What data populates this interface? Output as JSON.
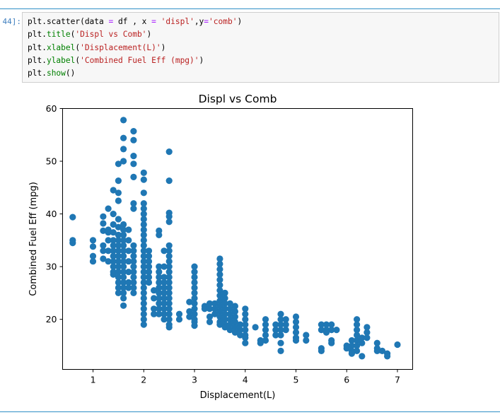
{
  "cell": {
    "prompt": "44]:",
    "code_lines": [
      [
        {
          "t": "plt.scatter(data ",
          "c": "fn"
        },
        {
          "t": "=",
          "c": "op"
        },
        {
          "t": " df , x ",
          "c": "fn"
        },
        {
          "t": "=",
          "c": "op"
        },
        {
          "t": " ",
          "c": "fn"
        },
        {
          "t": "'displ'",
          "c": "str"
        },
        {
          "t": ",y",
          "c": "fn"
        },
        {
          "t": "=",
          "c": "op"
        },
        {
          "t": "'comb'",
          "c": "str"
        },
        {
          "t": ")",
          "c": "fn"
        }
      ],
      [
        {
          "t": "plt.",
          "c": "fn"
        },
        {
          "t": "title",
          "c": "kw"
        },
        {
          "t": "(",
          "c": "fn"
        },
        {
          "t": "'Displ vs Comb'",
          "c": "str"
        },
        {
          "t": ")",
          "c": "fn"
        }
      ],
      [
        {
          "t": "plt.",
          "c": "fn"
        },
        {
          "t": "xlabel",
          "c": "kw"
        },
        {
          "t": "(",
          "c": "fn"
        },
        {
          "t": "'Displacement(L)'",
          "c": "str"
        },
        {
          "t": ")",
          "c": "fn"
        }
      ],
      [
        {
          "t": "plt.",
          "c": "fn"
        },
        {
          "t": "ylabel",
          "c": "kw"
        },
        {
          "t": "(",
          "c": "fn"
        },
        {
          "t": "'Combined Fuel Eff (mpg)'",
          "c": "str"
        },
        {
          "t": ")",
          "c": "fn"
        }
      ],
      [
        {
          "t": "plt.",
          "c": "fn"
        },
        {
          "t": "show",
          "c": "kw"
        },
        {
          "t": "()",
          "c": "fn"
        }
      ]
    ]
  },
  "chart_data": {
    "type": "scatter",
    "title": "Displ vs Comb",
    "xlabel": "Displacement(L)",
    "ylabel": "Combined Fuel Eff (mpg)",
    "xlim": [
      0.4,
      7.3
    ],
    "ylim": [
      10.5,
      60
    ],
    "xticks": [
      1,
      2,
      3,
      4,
      5,
      6,
      7
    ],
    "yticks": [
      20,
      30,
      40,
      50,
      60
    ],
    "grid": false,
    "legend": "none",
    "color": "#1f77b4",
    "points": [
      [
        0.6,
        39.4
      ],
      [
        0.6,
        35.0
      ],
      [
        0.6,
        34.5
      ],
      [
        1.0,
        35.0
      ],
      [
        1.0,
        33.8
      ],
      [
        1.0,
        32.0
      ],
      [
        1.0,
        31.0
      ],
      [
        1.2,
        39.5
      ],
      [
        1.2,
        38.2
      ],
      [
        1.2,
        36.8
      ],
      [
        1.2,
        34.0
      ],
      [
        1.2,
        33.0
      ],
      [
        1.2,
        31.5
      ],
      [
        1.3,
        41.0
      ],
      [
        1.3,
        37.0
      ],
      [
        1.3,
        36.5
      ],
      [
        1.3,
        35.0
      ],
      [
        1.3,
        33.0
      ],
      [
        1.3,
        31.0
      ],
      [
        1.4,
        44.5
      ],
      [
        1.4,
        40.0
      ],
      [
        1.4,
        38.0
      ],
      [
        1.4,
        36.5
      ],
      [
        1.4,
        35.0
      ],
      [
        1.4,
        34.0
      ],
      [
        1.4,
        33.0
      ],
      [
        1.4,
        32.0
      ],
      [
        1.4,
        31.0
      ],
      [
        1.4,
        30.0
      ],
      [
        1.4,
        29.0
      ],
      [
        1.4,
        28.5
      ],
      [
        1.5,
        49.5
      ],
      [
        1.5,
        46.3
      ],
      [
        1.5,
        44.0
      ],
      [
        1.5,
        42.5
      ],
      [
        1.5,
        39.0
      ],
      [
        1.5,
        37.5
      ],
      [
        1.5,
        36.0
      ],
      [
        1.5,
        35.0
      ],
      [
        1.5,
        34.0
      ],
      [
        1.5,
        33.0
      ],
      [
        1.5,
        32.0
      ],
      [
        1.5,
        31.0
      ],
      [
        1.5,
        30.0
      ],
      [
        1.5,
        29.0
      ],
      [
        1.5,
        28.0
      ],
      [
        1.5,
        27.0
      ],
      [
        1.5,
        26.0
      ],
      [
        1.5,
        25.0
      ],
      [
        1.6,
        57.8
      ],
      [
        1.6,
        54.4
      ],
      [
        1.6,
        52.3
      ],
      [
        1.6,
        50.0
      ],
      [
        1.6,
        38.0
      ],
      [
        1.6,
        37.0
      ],
      [
        1.6,
        36.0
      ],
      [
        1.6,
        35.0
      ],
      [
        1.6,
        34.0
      ],
      [
        1.6,
        33.0
      ],
      [
        1.6,
        32.0
      ],
      [
        1.6,
        31.0
      ],
      [
        1.6,
        30.0
      ],
      [
        1.6,
        29.0
      ],
      [
        1.6,
        28.0
      ],
      [
        1.6,
        27.0
      ],
      [
        1.6,
        26.0
      ],
      [
        1.6,
        25.0
      ],
      [
        1.6,
        24.0
      ],
      [
        1.6,
        22.6
      ],
      [
        1.7,
        37.0
      ],
      [
        1.7,
        35.0
      ],
      [
        1.7,
        33.0
      ],
      [
        1.7,
        31.0
      ],
      [
        1.7,
        29.0
      ],
      [
        1.7,
        27.0
      ],
      [
        1.7,
        26.0
      ],
      [
        1.8,
        55.7
      ],
      [
        1.8,
        54.0
      ],
      [
        1.8,
        51.0
      ],
      [
        1.8,
        49.5
      ],
      [
        1.8,
        47.0
      ],
      [
        1.8,
        42.0
      ],
      [
        1.8,
        41.0
      ],
      [
        1.8,
        34.0
      ],
      [
        1.8,
        33.0
      ],
      [
        1.8,
        32.0
      ],
      [
        1.8,
        31.0
      ],
      [
        1.8,
        30.0
      ],
      [
        1.8,
        29.0
      ],
      [
        1.8,
        28.0
      ],
      [
        1.8,
        27.0
      ],
      [
        1.8,
        26.0
      ],
      [
        1.8,
        25.0
      ],
      [
        2.0,
        47.8
      ],
      [
        2.0,
        46.5
      ],
      [
        2.0,
        44.0
      ],
      [
        2.0,
        42.0
      ],
      [
        2.0,
        41.0
      ],
      [
        2.0,
        40.0
      ],
      [
        2.0,
        39.0
      ],
      [
        2.0,
        38.0
      ],
      [
        2.0,
        37.0
      ],
      [
        2.0,
        36.0
      ],
      [
        2.0,
        35.0
      ],
      [
        2.0,
        34.0
      ],
      [
        2.0,
        33.0
      ],
      [
        2.0,
        32.0
      ],
      [
        2.0,
        31.0
      ],
      [
        2.0,
        30.0
      ],
      [
        2.0,
        29.0
      ],
      [
        2.0,
        28.0
      ],
      [
        2.0,
        27.0
      ],
      [
        2.0,
        26.0
      ],
      [
        2.0,
        25.0
      ],
      [
        2.0,
        24.0
      ],
      [
        2.0,
        23.0
      ],
      [
        2.0,
        22.0
      ],
      [
        2.0,
        21.0
      ],
      [
        2.0,
        20.0
      ],
      [
        2.0,
        19.0
      ],
      [
        2.1,
        33.0
      ],
      [
        2.1,
        32.0
      ],
      [
        2.1,
        31.0
      ],
      [
        2.1,
        30.0
      ],
      [
        2.1,
        29.0
      ],
      [
        2.1,
        28.0
      ],
      [
        2.1,
        27.0
      ],
      [
        2.2,
        25.5
      ],
      [
        2.2,
        24.0
      ],
      [
        2.2,
        22.0
      ],
      [
        2.2,
        21.0
      ],
      [
        2.3,
        36.8
      ],
      [
        2.3,
        36.0
      ],
      [
        2.3,
        30.0
      ],
      [
        2.3,
        29.0
      ],
      [
        2.3,
        28.0
      ],
      [
        2.3,
        27.0
      ],
      [
        2.3,
        26.0
      ],
      [
        2.3,
        25.0
      ],
      [
        2.3,
        24.0
      ],
      [
        2.3,
        23.0
      ],
      [
        2.3,
        22.0
      ],
      [
        2.3,
        21.0
      ],
      [
        2.4,
        33.0
      ],
      [
        2.4,
        30.0
      ],
      [
        2.4,
        28.0
      ],
      [
        2.4,
        27.0
      ],
      [
        2.4,
        26.0
      ],
      [
        2.4,
        25.0
      ],
      [
        2.4,
        24.0
      ],
      [
        2.4,
        23.0
      ],
      [
        2.4,
        22.0
      ],
      [
        2.4,
        21.0
      ],
      [
        2.4,
        20.0
      ],
      [
        2.5,
        51.8
      ],
      [
        2.5,
        46.3
      ],
      [
        2.5,
        40.2
      ],
      [
        2.5,
        39.5
      ],
      [
        2.5,
        38.5
      ],
      [
        2.5,
        34.0
      ],
      [
        2.5,
        33.0
      ],
      [
        2.5,
        32.0
      ],
      [
        2.5,
        31.0
      ],
      [
        2.5,
        30.0
      ],
      [
        2.5,
        29.0
      ],
      [
        2.5,
        28.0
      ],
      [
        2.5,
        27.0
      ],
      [
        2.5,
        26.0
      ],
      [
        2.5,
        25.0
      ],
      [
        2.5,
        24.0
      ],
      [
        2.5,
        23.0
      ],
      [
        2.5,
        22.0
      ],
      [
        2.5,
        21.0
      ],
      [
        2.5,
        20.0
      ],
      [
        2.5,
        19.0
      ],
      [
        2.5,
        18.5
      ],
      [
        2.7,
        21.0
      ],
      [
        2.7,
        20.0
      ],
      [
        2.9,
        23.3
      ],
      [
        2.9,
        21.5
      ],
      [
        2.9,
        20.5
      ],
      [
        3.0,
        30.0
      ],
      [
        3.0,
        29.0
      ],
      [
        3.0,
        28.0
      ],
      [
        3.0,
        27.0
      ],
      [
        3.0,
        26.0
      ],
      [
        3.0,
        25.0
      ],
      [
        3.0,
        24.0
      ],
      [
        3.0,
        23.0
      ],
      [
        3.0,
        22.0
      ],
      [
        3.0,
        21.0
      ],
      [
        3.0,
        20.0
      ],
      [
        3.0,
        19.5
      ],
      [
        3.0,
        18.8
      ],
      [
        3.2,
        22.5
      ],
      [
        3.2,
        22.0
      ],
      [
        3.3,
        23.0
      ],
      [
        3.3,
        22.0
      ],
      [
        3.3,
        20.5
      ],
      [
        3.3,
        19.5
      ],
      [
        3.4,
        23.0
      ],
      [
        3.4,
        22.0
      ],
      [
        3.4,
        21.0
      ],
      [
        3.5,
        31.5
      ],
      [
        3.5,
        30.5
      ],
      [
        3.5,
        29.5
      ],
      [
        3.5,
        28.5
      ],
      [
        3.5,
        27.5
      ],
      [
        3.5,
        26.5
      ],
      [
        3.5,
        25.5
      ],
      [
        3.5,
        24.5
      ],
      [
        3.5,
        23.5
      ],
      [
        3.5,
        22.5
      ],
      [
        3.5,
        21.5
      ],
      [
        3.5,
        20.5
      ],
      [
        3.5,
        19.5
      ],
      [
        3.5,
        19.0
      ],
      [
        3.6,
        25.0
      ],
      [
        3.6,
        24.0
      ],
      [
        3.6,
        23.0
      ],
      [
        3.6,
        22.0
      ],
      [
        3.6,
        21.0
      ],
      [
        3.6,
        20.0
      ],
      [
        3.6,
        19.0
      ],
      [
        3.6,
        18.5
      ],
      [
        3.7,
        23.0
      ],
      [
        3.7,
        22.0
      ],
      [
        3.7,
        21.0
      ],
      [
        3.7,
        20.0
      ],
      [
        3.7,
        19.0
      ],
      [
        3.7,
        18.0
      ],
      [
        3.8,
        22.5
      ],
      [
        3.8,
        21.5
      ],
      [
        3.8,
        20.5
      ],
      [
        3.8,
        19.5
      ],
      [
        3.8,
        18.5
      ],
      [
        3.8,
        17.5
      ],
      [
        3.9,
        19.0
      ],
      [
        3.9,
        18.0
      ],
      [
        3.9,
        17.0
      ],
      [
        4.0,
        22.0
      ],
      [
        4.0,
        21.0
      ],
      [
        4.0,
        20.0
      ],
      [
        4.0,
        19.0
      ],
      [
        4.0,
        18.0
      ],
      [
        4.0,
        17.0
      ],
      [
        4.0,
        16.5
      ],
      [
        4.0,
        15.5
      ],
      [
        4.2,
        18.5
      ],
      [
        4.3,
        16.0
      ],
      [
        4.3,
        15.5
      ],
      [
        4.4,
        20.0
      ],
      [
        4.4,
        19.0
      ],
      [
        4.4,
        18.0
      ],
      [
        4.4,
        17.0
      ],
      [
        4.4,
        16.0
      ],
      [
        4.6,
        19.0
      ],
      [
        4.6,
        18.0
      ],
      [
        4.6,
        17.0
      ],
      [
        4.7,
        21.0
      ],
      [
        4.7,
        20.0
      ],
      [
        4.7,
        19.0
      ],
      [
        4.7,
        18.0
      ],
      [
        4.7,
        17.0
      ],
      [
        4.7,
        15.5
      ],
      [
        4.7,
        14.0
      ],
      [
        4.8,
        20.0
      ],
      [
        4.8,
        19.0
      ],
      [
        4.8,
        18.0
      ],
      [
        5.0,
        20.5
      ],
      [
        5.0,
        19.5
      ],
      [
        5.0,
        18.5
      ],
      [
        5.0,
        17.5
      ],
      [
        5.0,
        16.5
      ],
      [
        5.0,
        16.0
      ],
      [
        5.2,
        17.0
      ],
      [
        5.2,
        16.0
      ],
      [
        5.5,
        19.0
      ],
      [
        5.5,
        18.0
      ],
      [
        5.5,
        14.5
      ],
      [
        5.5,
        14.0
      ],
      [
        5.6,
        19.0
      ],
      [
        5.6,
        18.0
      ],
      [
        5.6,
        17.5
      ],
      [
        5.7,
        19.0
      ],
      [
        5.7,
        18.0
      ],
      [
        5.7,
        16.0
      ],
      [
        5.7,
        15.5
      ],
      [
        5.8,
        18.0
      ],
      [
        6.0,
        15.0
      ],
      [
        6.0,
        14.5
      ],
      [
        6.1,
        16.0
      ],
      [
        6.1,
        15.0
      ],
      [
        6.1,
        14.0
      ],
      [
        6.1,
        13.5
      ],
      [
        6.2,
        20.0
      ],
      [
        6.2,
        19.0
      ],
      [
        6.2,
        18.0
      ],
      [
        6.2,
        17.0
      ],
      [
        6.2,
        16.0
      ],
      [
        6.2,
        15.0
      ],
      [
        6.2,
        14.0
      ],
      [
        6.3,
        16.5
      ],
      [
        6.3,
        15.5
      ],
      [
        6.3,
        13.0
      ],
      [
        6.4,
        18.5
      ],
      [
        6.4,
        17.5
      ],
      [
        6.4,
        16.5
      ],
      [
        6.6,
        15.5
      ],
      [
        6.6,
        14.5
      ],
      [
        6.6,
        14.0
      ],
      [
        6.7,
        14.0
      ],
      [
        6.8,
        13.5
      ],
      [
        6.8,
        13.0
      ],
      [
        7.0,
        15.2
      ]
    ]
  }
}
